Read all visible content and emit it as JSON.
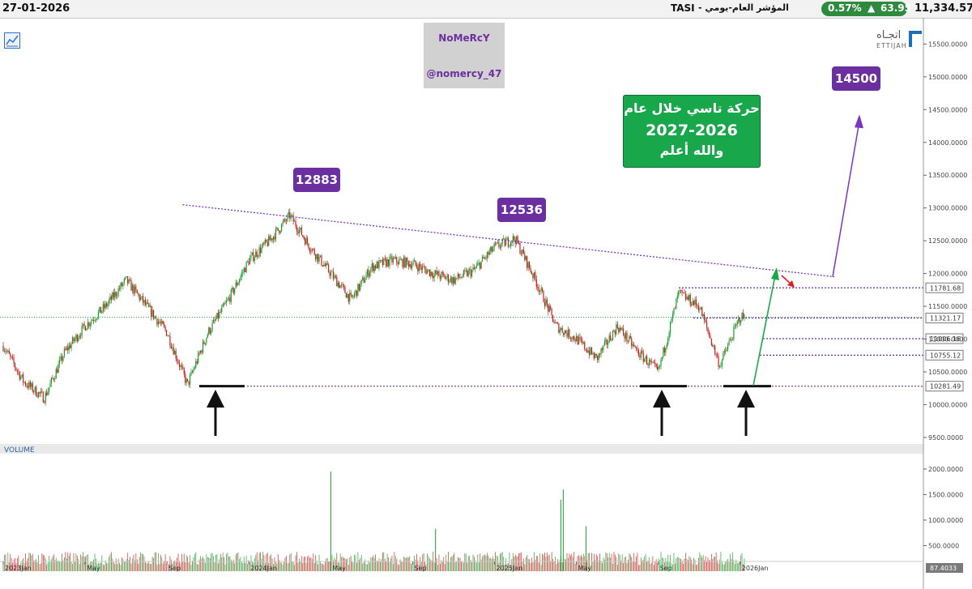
{
  "header": {
    "date": "27-01-2026",
    "symbol": "TASI",
    "name": "المؤشر العام-يومي -",
    "change_pct": "0.57%",
    "change_abs": "63.95",
    "price": "11,334.57",
    "up_color": "#2e8b3d"
  },
  "watermark": {
    "name": "NoMeRcY",
    "handle": "@nomercy_47"
  },
  "brand": {
    "ar": "اتجـاه",
    "en": "ETTIJAH"
  },
  "note": {
    "line1": "حركة تاسي خلال عام",
    "line2": "2027-2026",
    "line3": "والله أعلم"
  },
  "targets": {
    "high_2024": "12883",
    "high_2025": "12536",
    "target": "14500"
  },
  "chart_data": {
    "type": "candlestick",
    "instrument": "TASI",
    "interval": "daily",
    "price_axis": {
      "ylim": [
        9400,
        15900
      ],
      "ticks": [
        9500,
        10000,
        10500,
        11000,
        11500,
        12000,
        12500,
        13000,
        13500,
        14000,
        14500,
        15000,
        15500
      ],
      "tick_labels": [
        "9500.0000",
        "10000.0000",
        "10500.0000",
        "11000.0000",
        "11500.0000",
        "12000.0000",
        "12500.0000",
        "13000.0000",
        "13500.0000",
        "14000.0000",
        "14500.0000",
        "15000.0000",
        "15500.0000"
      ]
    },
    "level_labels": [
      {
        "value": 11781.68,
        "label": "11781.68",
        "color": "#6b2fa0"
      },
      {
        "value": 11321.17,
        "label": "11321.17",
        "color": "#6b2fa0"
      },
      {
        "value": 11006.16,
        "label": "11006.16",
        "color": "#6b2fa0"
      },
      {
        "value": 10755.12,
        "label": "10755.12",
        "color": "#6b2fa0"
      },
      {
        "value": 10281.49,
        "label": "10281.49",
        "color": "#6b2fa0"
      }
    ],
    "x_axis": {
      "labels": [
        "2023Jan",
        "May",
        "Sep",
        "2024Jan",
        "May",
        "Sep",
        "2025Jan",
        "May",
        "Sep",
        "2026Jan"
      ]
    },
    "price_path": [
      [
        "2023-01",
        10900
      ],
      [
        "2023-02",
        10350
      ],
      [
        "2023-03",
        10100
      ],
      [
        "2023-04",
        10800
      ],
      [
        "2023-05",
        11200
      ],
      [
        "2023-06",
        11500
      ],
      [
        "2023-07",
        11900
      ],
      [
        "2023-08",
        11500
      ],
      [
        "2023-09",
        11100
      ],
      [
        "2023-10",
        10300
      ],
      [
        "2023-11",
        11100
      ],
      [
        "2023-12",
        11600
      ],
      [
        "2024-01",
        12200
      ],
      [
        "2024-02",
        12500
      ],
      [
        "2024-03",
        12883
      ],
      [
        "2024-04",
        12400
      ],
      [
        "2024-05",
        12000
      ],
      [
        "2024-06",
        11600
      ],
      [
        "2024-07",
        12100
      ],
      [
        "2024-08",
        12200
      ],
      [
        "2024-09",
        12150
      ],
      [
        "2024-10",
        12000
      ],
      [
        "2024-11",
        11900
      ],
      [
        "2024-12",
        12050
      ],
      [
        "2025-01",
        12400
      ],
      [
        "2025-02",
        12536
      ],
      [
        "2025-03",
        11900
      ],
      [
        "2025-04",
        11200
      ],
      [
        "2025-05",
        11000
      ],
      [
        "2025-06",
        10700
      ],
      [
        "2025-07",
        11200
      ],
      [
        "2025-08",
        10800
      ],
      [
        "2025-09",
        10500
      ],
      [
        "2025-10",
        11700
      ],
      [
        "2025-11",
        11500
      ],
      [
        "2025-12",
        10600
      ],
      [
        "2026-01",
        11334.57
      ]
    ],
    "volume_axis": {
      "ylim": [
        0,
        2300
      ],
      "ticks": [
        500,
        1000,
        1500,
        2000
      ],
      "tick_labels": [
        "500.0000",
        "1000.0000",
        "1500.0000",
        "2000.0000"
      ],
      "last_label": "87.4033",
      "title": "VOLUME"
    },
    "volume_notable": [
      [
        "2024-05",
        1950
      ],
      [
        "2024-10",
        830
      ],
      [
        "2025-04",
        1400
      ],
      [
        "2025-04",
        1600
      ],
      [
        "2025-05",
        880
      ]
    ],
    "annotations": {
      "resistance_trendline": {
        "from": [
          "2023-10",
          13050
        ],
        "to": [
          "2026-05",
          11950
        ]
      },
      "support_line": 10281.49,
      "projection_target": 14500,
      "bottom_arrows": [
        "2023-10",
        "2025-09",
        "2026-01"
      ]
    },
    "colors": {
      "up": "#1a9c2d",
      "down": "#c81e1e",
      "trend": "#7b35c4",
      "arrow_up": "#19a84a",
      "arrow_down": "#e02020"
    }
  }
}
